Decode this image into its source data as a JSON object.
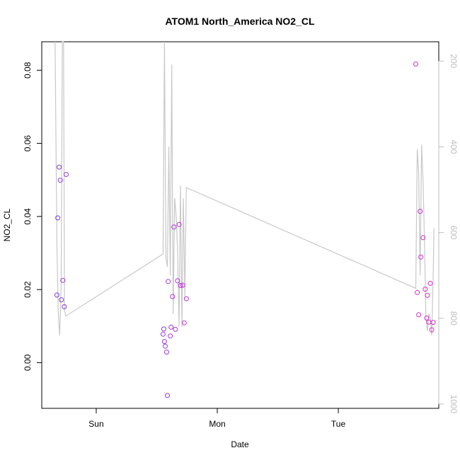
{
  "chart_data": {
    "type": "scatter",
    "title": "ATOM1 North_America NO2_CL",
    "xlabel": "Date",
    "ylabel": "NO2_CL",
    "xlim": [
      -0.45,
      2.83
    ],
    "ylim": [
      -0.0125,
      0.0878
    ],
    "x_ticks": [
      {
        "value": 0,
        "label": "Sun"
      },
      {
        "value": 1,
        "label": "Mon"
      },
      {
        "value": 2,
        "label": "Tue"
      }
    ],
    "y_ticks": [
      {
        "value": 0.0,
        "label": "0.00"
      },
      {
        "value": 0.02,
        "label": "0.02"
      },
      {
        "value": 0.04,
        "label": "0.04"
      },
      {
        "value": 0.06,
        "label": "0.06"
      },
      {
        "value": 0.08,
        "label": "0.08"
      }
    ],
    "y2_lim": [
      1010,
      155
    ],
    "y2_ticks": [
      {
        "value": 200,
        "label": "200"
      },
      {
        "value": 400,
        "label": "400"
      },
      {
        "value": 600,
        "label": "600"
      },
      {
        "value": 800,
        "label": "800"
      },
      {
        "value": 1000,
        "label": "1000"
      }
    ],
    "grid": false,
    "legend": "none",
    "colors": {
      "point_start": "#7a3ce0",
      "point_end": "#e52bd0",
      "line": "#c8c8c8"
    },
    "points": [
      {
        "x": -0.325,
        "y": 0.0185
      },
      {
        "x": -0.318,
        "y": 0.0396
      },
      {
        "x": -0.306,
        "y": 0.0535
      },
      {
        "x": -0.297,
        "y": 0.0499
      },
      {
        "x": -0.288,
        "y": 0.0172
      },
      {
        "x": -0.276,
        "y": 0.0225
      },
      {
        "x": -0.264,
        "y": 0.0153
      },
      {
        "x": -0.248,
        "y": 0.0515
      },
      {
        "x": 0.552,
        "y": 0.0078
      },
      {
        "x": 0.558,
        "y": 0.0092
      },
      {
        "x": 0.564,
        "y": 0.0058
      },
      {
        "x": 0.57,
        "y": 0.0045
      },
      {
        "x": 0.582,
        "y": 0.0029
      },
      {
        "x": 0.588,
        "y": -0.009
      },
      {
        "x": 0.594,
        "y": 0.0222
      },
      {
        "x": 0.612,
        "y": 0.0073
      },
      {
        "x": 0.618,
        "y": 0.0097
      },
      {
        "x": 0.63,
        "y": 0.0181
      },
      {
        "x": 0.642,
        "y": 0.0371
      },
      {
        "x": 0.654,
        "y": 0.0091
      },
      {
        "x": 0.672,
        "y": 0.0224
      },
      {
        "x": 0.685,
        "y": 0.0378
      },
      {
        "x": 0.697,
        "y": 0.0211
      },
      {
        "x": 0.715,
        "y": 0.0212
      },
      {
        "x": 0.727,
        "y": 0.0109
      },
      {
        "x": 0.745,
        "y": 0.0175
      },
      {
        "x": 2.64,
        "y": 0.0817
      },
      {
        "x": 2.652,
        "y": 0.0192
      },
      {
        "x": 2.664,
        "y": 0.0131
      },
      {
        "x": 2.676,
        "y": 0.0414
      },
      {
        "x": 2.682,
        "y": 0.0289
      },
      {
        "x": 2.7,
        "y": 0.0342
      },
      {
        "x": 2.718,
        "y": 0.0201
      },
      {
        "x": 2.73,
        "y": 0.0122
      },
      {
        "x": 2.736,
        "y": 0.0184
      },
      {
        "x": 2.748,
        "y": 0.0111
      },
      {
        "x": 2.76,
        "y": 0.0217
      },
      {
        "x": 2.772,
        "y": 0.009
      },
      {
        "x": 2.784,
        "y": 0.011
      }
    ],
    "altitude_line": [
      {
        "x": -0.34,
        "y2": 155
      },
      {
        "x": -0.325,
        "y2": 620
      },
      {
        "x": -0.315,
        "y2": 780
      },
      {
        "x": -0.302,
        "y2": 840
      },
      {
        "x": -0.29,
        "y2": 720
      },
      {
        "x": -0.28,
        "y2": 155
      },
      {
        "x": -0.27,
        "y2": 155
      },
      {
        "x": -0.262,
        "y2": 780
      },
      {
        "x": -0.252,
        "y2": 795
      },
      {
        "x": 0.552,
        "y2": 650
      },
      {
        "x": 0.564,
        "y2": 155
      },
      {
        "x": 0.576,
        "y2": 660
      },
      {
        "x": 0.588,
        "y2": 680
      },
      {
        "x": 0.6,
        "y2": 400
      },
      {
        "x": 0.612,
        "y2": 700
      },
      {
        "x": 0.624,
        "y2": 208
      },
      {
        "x": 0.636,
        "y2": 790
      },
      {
        "x": 0.648,
        "y2": 520
      },
      {
        "x": 0.66,
        "y2": 560
      },
      {
        "x": 0.672,
        "y2": 640
      },
      {
        "x": 0.684,
        "y2": 820
      },
      {
        "x": 0.696,
        "y2": 490
      },
      {
        "x": 0.708,
        "y2": 820
      },
      {
        "x": 0.72,
        "y2": 520
      },
      {
        "x": 0.732,
        "y2": 750
      },
      {
        "x": 0.744,
        "y2": 495
      },
      {
        "x": 2.64,
        "y2": 730
      },
      {
        "x": 2.652,
        "y2": 405
      },
      {
        "x": 2.664,
        "y2": 460
      },
      {
        "x": 2.676,
        "y2": 700
      },
      {
        "x": 2.688,
        "y2": 395
      },
      {
        "x": 2.7,
        "y2": 480
      },
      {
        "x": 2.712,
        "y2": 620
      },
      {
        "x": 2.724,
        "y2": 800
      },
      {
        "x": 2.736,
        "y2": 830
      },
      {
        "x": 2.748,
        "y2": 790
      },
      {
        "x": 2.76,
        "y2": 800
      },
      {
        "x": 2.772,
        "y2": 840
      },
      {
        "x": 2.784,
        "y2": 700
      },
      {
        "x": 2.79,
        "y2": 590
      }
    ]
  }
}
